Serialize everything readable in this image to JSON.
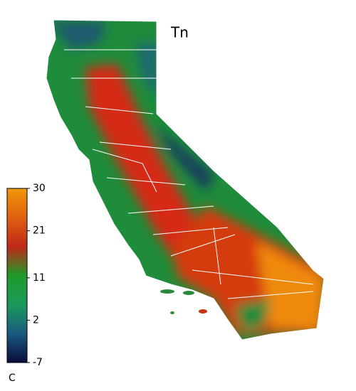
{
  "title": "Tn",
  "colorbar": {
    "lim": [
      -7,
      30
    ],
    "ticks": [
      -7,
      2,
      11,
      21,
      30
    ],
    "unit": "C",
    "colormap": [
      "#0a0a3a",
      "#1a5a80",
      "#1a9a5a",
      "#1e9a2a",
      "#c02818",
      "#e06010",
      "#f0980a"
    ]
  }
}
